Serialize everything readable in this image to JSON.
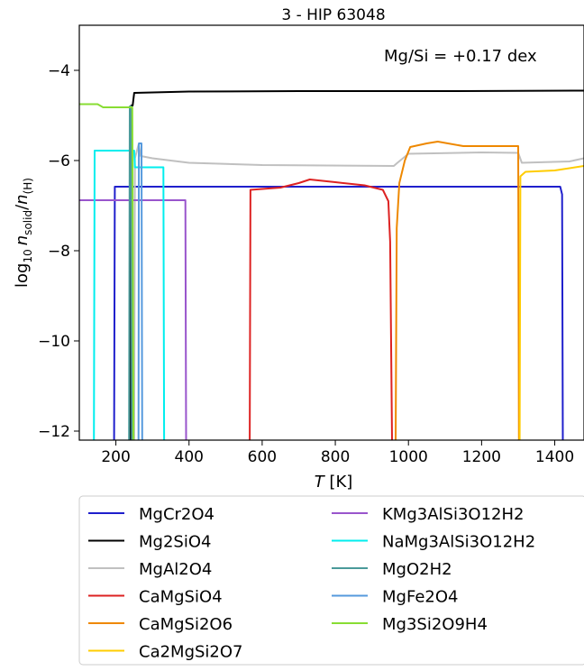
{
  "chart_data": {
    "type": "line",
    "title": "3 - HIP 63048",
    "annotation": "Mg/Si = +0.17 dex",
    "xlabel": {
      "italic": "T",
      "rest": " [K]"
    },
    "ylabel": {
      "base": "log",
      "sub": "10",
      "n": "n",
      "solid": "solid",
      "h": "(H)"
    },
    "xlim": [
      100,
      1480
    ],
    "ylim": [
      -12.2,
      -3.0
    ],
    "x_ticks": [
      200,
      400,
      600,
      800,
      1000,
      1200,
      1400
    ],
    "y_ticks": [
      -4,
      -6,
      -8,
      -10,
      -12
    ],
    "y_tick_labels": [
      "−4",
      "−6",
      "−8",
      "−10",
      "−12"
    ],
    "legend_position": "below-plot",
    "series": [
      {
        "name": "MgCr2O4",
        "color": "#1f1fcc",
        "points": [
          [
            195,
            -12.2
          ],
          [
            197,
            -6.58
          ],
          [
            1415,
            -6.58
          ],
          [
            1420,
            -6.75
          ],
          [
            1422,
            -12.2
          ]
        ]
      },
      {
        "name": "Mg2SiO4",
        "color": "#000000",
        "points": [
          [
            240,
            -12.2
          ],
          [
            242,
            -4.78
          ],
          [
            246,
            -4.78
          ],
          [
            250,
            -4.5
          ],
          [
            400,
            -4.47
          ],
          [
            700,
            -4.46
          ],
          [
            1100,
            -4.46
          ],
          [
            1480,
            -4.45
          ]
        ]
      },
      {
        "name": "MgAl2O4",
        "color": "#c0c0c0",
        "points": [
          [
            250,
            -12.2
          ],
          [
            252,
            -5.95
          ],
          [
            262,
            -5.65
          ],
          [
            268,
            -5.9
          ],
          [
            300,
            -5.95
          ],
          [
            400,
            -6.05
          ],
          [
            600,
            -6.1
          ],
          [
            960,
            -6.12
          ],
          [
            970,
            -6.05
          ],
          [
            1000,
            -5.85
          ],
          [
            1200,
            -5.82
          ],
          [
            1300,
            -5.83
          ],
          [
            1310,
            -6.05
          ],
          [
            1440,
            -6.02
          ],
          [
            1480,
            -5.95
          ]
        ]
      },
      {
        "name": "CaMgSiO4",
        "color": "#dd2222",
        "points": [
          [
            566,
            -12.2
          ],
          [
            568,
            -6.65
          ],
          [
            650,
            -6.6
          ],
          [
            700,
            -6.5
          ],
          [
            730,
            -6.42
          ],
          [
            800,
            -6.48
          ],
          [
            880,
            -6.55
          ],
          [
            930,
            -6.65
          ],
          [
            945,
            -6.9
          ],
          [
            950,
            -7.8
          ],
          [
            955,
            -12.2
          ]
        ]
      },
      {
        "name": "CaMgSi2O6",
        "color": "#ee8800",
        "points": [
          [
            965,
            -12.2
          ],
          [
            968,
            -7.5
          ],
          [
            975,
            -6.5
          ],
          [
            990,
            -6.0
          ],
          [
            1005,
            -5.7
          ],
          [
            1050,
            -5.62
          ],
          [
            1080,
            -5.58
          ],
          [
            1150,
            -5.68
          ],
          [
            1300,
            -5.68
          ],
          [
            1302,
            -12.2
          ]
        ]
      },
      {
        "name": "Ca2MgSi2O7",
        "color": "#ffcc00",
        "points": [
          [
            1304,
            -12.2
          ],
          [
            1306,
            -6.35
          ],
          [
            1320,
            -6.25
          ],
          [
            1400,
            -6.22
          ],
          [
            1480,
            -6.12
          ]
        ]
      },
      {
        "name": "KMg3AlSi3O12H2",
        "color": "#9955cc",
        "points": [
          [
            100,
            -6.88
          ],
          [
            390,
            -6.88
          ],
          [
            392,
            -12.2
          ]
        ]
      },
      {
        "name": "NaMg3AlSi3O12H2",
        "color": "#00eeee",
        "points": [
          [
            140,
            -12.2
          ],
          [
            142,
            -5.78
          ],
          [
            250,
            -5.78
          ],
          [
            252,
            -6.15
          ],
          [
            330,
            -6.15
          ],
          [
            332,
            -12.2
          ]
        ]
      },
      {
        "name": "MgO2H2",
        "color": "#4a9a9a",
        "points": [
          [
            236,
            -12.2
          ],
          [
            238,
            -4.8
          ],
          [
            242,
            -4.8
          ],
          [
            244,
            -12.2
          ]
        ]
      },
      {
        "name": "MgFe2O4",
        "color": "#5599dd",
        "points": [
          [
            262,
            -12.2
          ],
          [
            263,
            -5.62
          ],
          [
            270,
            -5.62
          ],
          [
            272,
            -12.2
          ]
        ]
      },
      {
        "name": "Mg3Si2O9H4",
        "color": "#88dd33",
        "points": [
          [
            100,
            -4.75
          ],
          [
            150,
            -4.75
          ],
          [
            165,
            -4.82
          ],
          [
            245,
            -4.82
          ],
          [
            248,
            -12.2
          ]
        ]
      }
    ]
  }
}
